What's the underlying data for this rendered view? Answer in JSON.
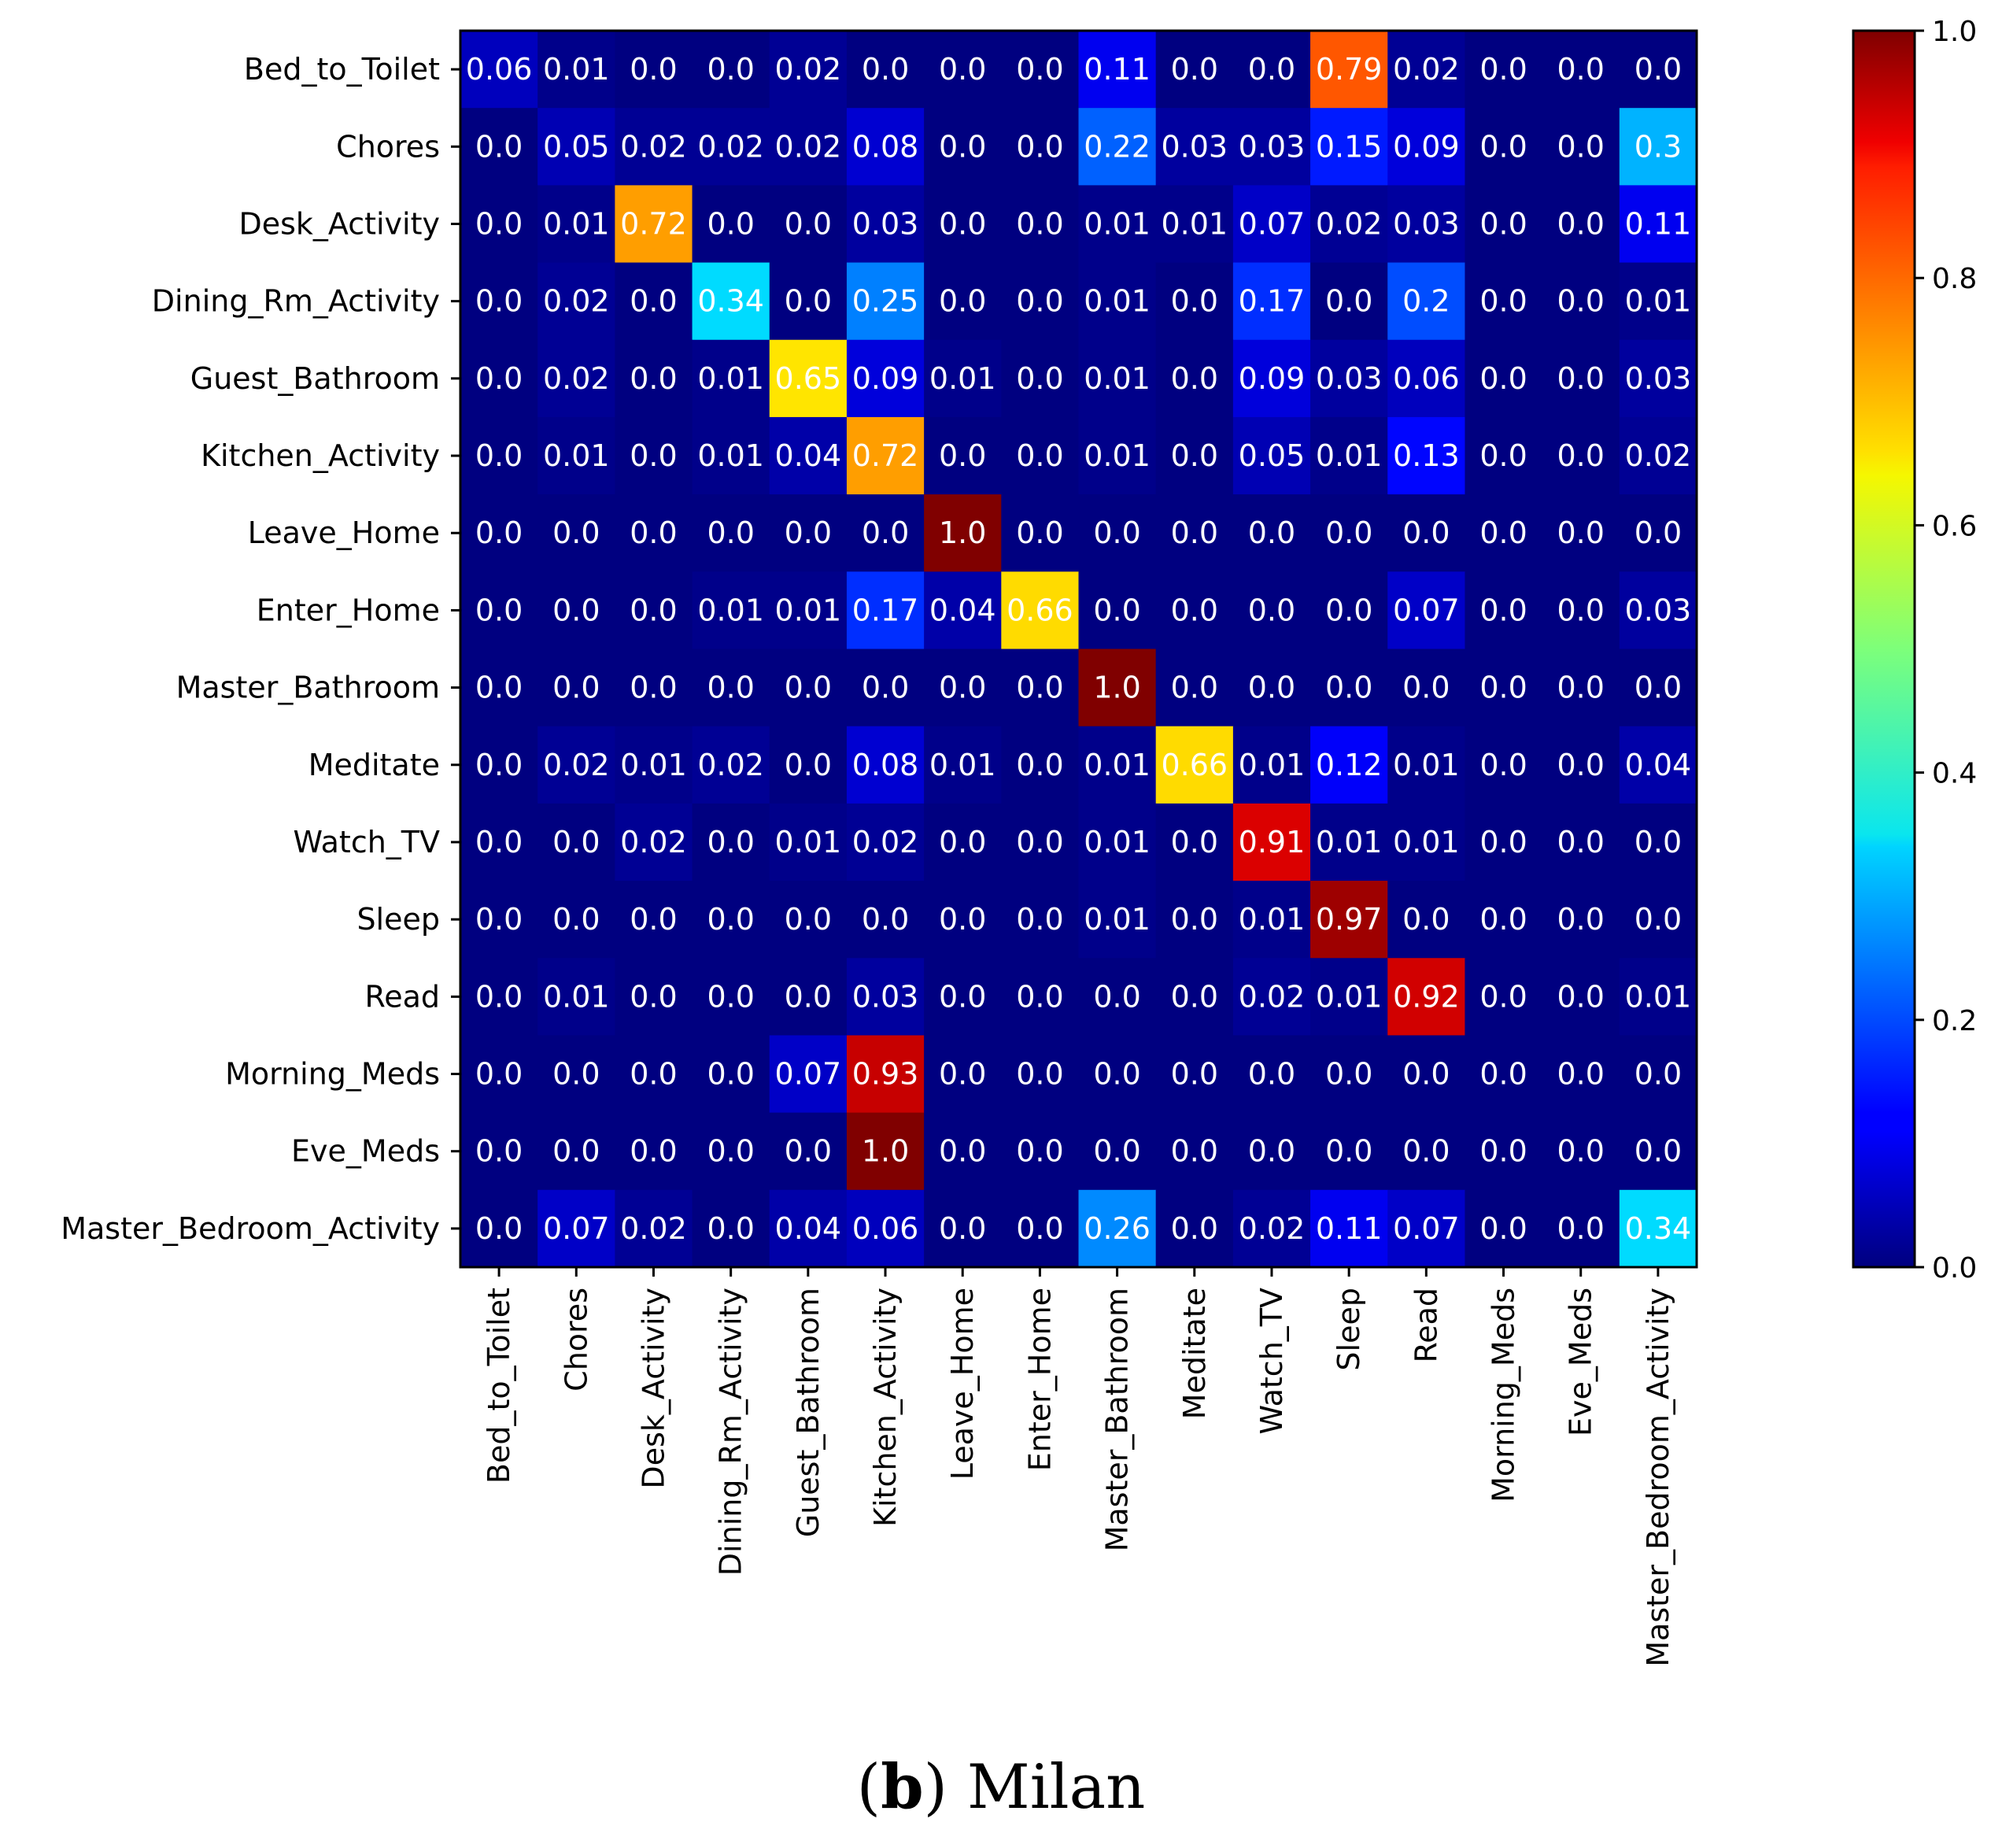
{
  "caption": {
    "tag": "b",
    "title": "Milan"
  },
  "chart_data": {
    "type": "heatmap",
    "colormap": "jet",
    "row_labels": [
      "Bed_to_Toilet",
      "Chores",
      "Desk_Activity",
      "Dining_Rm_Activity",
      "Guest_Bathroom",
      "Kitchen_Activity",
      "Leave_Home",
      "Enter_Home",
      "Master_Bathroom",
      "Meditate",
      "Watch_TV",
      "Sleep",
      "Read",
      "Morning_Meds",
      "Eve_Meds",
      "Master_Bedroom_Activity"
    ],
    "col_labels": [
      "Bed_to_Toilet",
      "Chores",
      "Desk_Activity",
      "Dining_Rm_Activity",
      "Guest_Bathroom",
      "Kitchen_Activity",
      "Leave_Home",
      "Enter_Home",
      "Master_Bathroom",
      "Meditate",
      "Watch_TV",
      "Sleep",
      "Read",
      "Morning_Meds",
      "Eve_Meds",
      "Master_Bedroom_Activity"
    ],
    "values": [
      [
        0.06,
        0.01,
        0.0,
        0.0,
        0.02,
        0.0,
        0.0,
        0.0,
        0.11,
        0.0,
        0.0,
        0.79,
        0.02,
        0.0,
        0.0,
        0.0
      ],
      [
        0.0,
        0.05,
        0.02,
        0.02,
        0.02,
        0.08,
        0.0,
        0.0,
        0.22,
        0.03,
        0.03,
        0.15,
        0.09,
        0.0,
        0.0,
        0.3
      ],
      [
        0.0,
        0.01,
        0.72,
        0.0,
        0.0,
        0.03,
        0.0,
        0.0,
        0.01,
        0.01,
        0.07,
        0.02,
        0.03,
        0.0,
        0.0,
        0.11
      ],
      [
        0.0,
        0.02,
        0.0,
        0.34,
        0.0,
        0.25,
        0.0,
        0.0,
        0.01,
        0.0,
        0.17,
        0.0,
        0.2,
        0.0,
        0.0,
        0.01
      ],
      [
        0.0,
        0.02,
        0.0,
        0.01,
        0.65,
        0.09,
        0.01,
        0.0,
        0.01,
        0.0,
        0.09,
        0.03,
        0.06,
        0.0,
        0.0,
        0.03
      ],
      [
        0.0,
        0.01,
        0.0,
        0.01,
        0.04,
        0.72,
        0.0,
        0.0,
        0.01,
        0.0,
        0.05,
        0.01,
        0.13,
        0.0,
        0.0,
        0.02
      ],
      [
        0.0,
        0.0,
        0.0,
        0.0,
        0.0,
        0.0,
        1.0,
        0.0,
        0.0,
        0.0,
        0.0,
        0.0,
        0.0,
        0.0,
        0.0,
        0.0
      ],
      [
        0.0,
        0.0,
        0.0,
        0.01,
        0.01,
        0.17,
        0.04,
        0.66,
        0.0,
        0.0,
        0.0,
        0.0,
        0.07,
        0.0,
        0.0,
        0.03
      ],
      [
        0.0,
        0.0,
        0.0,
        0.0,
        0.0,
        0.0,
        0.0,
        0.0,
        1.0,
        0.0,
        0.0,
        0.0,
        0.0,
        0.0,
        0.0,
        0.0
      ],
      [
        0.0,
        0.02,
        0.01,
        0.02,
        0.0,
        0.08,
        0.01,
        0.0,
        0.01,
        0.66,
        0.01,
        0.12,
        0.01,
        0.0,
        0.0,
        0.04
      ],
      [
        0.0,
        0.0,
        0.02,
        0.0,
        0.01,
        0.02,
        0.0,
        0.0,
        0.01,
        0.0,
        0.91,
        0.01,
        0.01,
        0.0,
        0.0,
        0.0
      ],
      [
        0.0,
        0.0,
        0.0,
        0.0,
        0.0,
        0.0,
        0.0,
        0.0,
        0.01,
        0.0,
        0.01,
        0.97,
        0.0,
        0.0,
        0.0,
        0.0
      ],
      [
        0.0,
        0.01,
        0.0,
        0.0,
        0.0,
        0.03,
        0.0,
        0.0,
        0.0,
        0.0,
        0.02,
        0.01,
        0.92,
        0.0,
        0.0,
        0.01
      ],
      [
        0.0,
        0.0,
        0.0,
        0.0,
        0.07,
        0.93,
        0.0,
        0.0,
        0.0,
        0.0,
        0.0,
        0.0,
        0.0,
        0.0,
        0.0,
        0.0
      ],
      [
        0.0,
        0.0,
        0.0,
        0.0,
        0.0,
        1.0,
        0.0,
        0.0,
        0.0,
        0.0,
        0.0,
        0.0,
        0.0,
        0.0,
        0.0,
        0.0
      ],
      [
        0.0,
        0.07,
        0.02,
        0.0,
        0.04,
        0.06,
        0.0,
        0.0,
        0.26,
        0.0,
        0.02,
        0.11,
        0.07,
        0.0,
        0.0,
        0.34
      ]
    ],
    "cell_labels": [
      [
        "0.06",
        "0.01",
        "0.0",
        "0.0",
        "0.02",
        "0.0",
        "0.0",
        "0.0",
        "0.11",
        "0.0",
        "0.0",
        "0.79",
        "0.02",
        "0.0",
        "0.0",
        "0.0"
      ],
      [
        "0.0",
        "0.05",
        "0.02",
        "0.02",
        "0.02",
        "0.08",
        "0.0",
        "0.0",
        "0.22",
        "0.03",
        "0.03",
        "0.15",
        "0.09",
        "0.0",
        "0.0",
        "0.3"
      ],
      [
        "0.0",
        "0.01",
        "0.72",
        "0.0",
        "0.0",
        "0.03",
        "0.0",
        "0.0",
        "0.01",
        "0.01",
        "0.07",
        "0.02",
        "0.03",
        "0.0",
        "0.0",
        "0.11"
      ],
      [
        "0.0",
        "0.02",
        "0.0",
        "0.34",
        "0.0",
        "0.25",
        "0.0",
        "0.0",
        "0.01",
        "0.0",
        "0.17",
        "0.0",
        "0.2",
        "0.0",
        "0.0",
        "0.01"
      ],
      [
        "0.0",
        "0.02",
        "0.0",
        "0.01",
        "0.65",
        "0.09",
        "0.01",
        "0.0",
        "0.01",
        "0.0",
        "0.09",
        "0.03",
        "0.06",
        "0.0",
        "0.0",
        "0.03"
      ],
      [
        "0.0",
        "0.01",
        "0.0",
        "0.01",
        "0.04",
        "0.72",
        "0.0",
        "0.0",
        "0.01",
        "0.0",
        "0.05",
        "0.01",
        "0.13",
        "0.0",
        "0.0",
        "0.02"
      ],
      [
        "0.0",
        "0.0",
        "0.0",
        "0.0",
        "0.0",
        "0.0",
        "1.0",
        "0.0",
        "0.0",
        "0.0",
        "0.0",
        "0.0",
        "0.0",
        "0.0",
        "0.0",
        "0.0"
      ],
      [
        "0.0",
        "0.0",
        "0.0",
        "0.01",
        "0.01",
        "0.17",
        "0.04",
        "0.66",
        "0.0",
        "0.0",
        "0.0",
        "0.0",
        "0.07",
        "0.0",
        "0.0",
        "0.03"
      ],
      [
        "0.0",
        "0.0",
        "0.0",
        "0.0",
        "0.0",
        "0.0",
        "0.0",
        "0.0",
        "1.0",
        "0.0",
        "0.0",
        "0.0",
        "0.0",
        "0.0",
        "0.0",
        "0.0"
      ],
      [
        "0.0",
        "0.02",
        "0.01",
        "0.02",
        "0.0",
        "0.08",
        "0.01",
        "0.0",
        "0.01",
        "0.66",
        "0.01",
        "0.12",
        "0.01",
        "0.0",
        "0.0",
        "0.04"
      ],
      [
        "0.0",
        "0.0",
        "0.02",
        "0.0",
        "0.01",
        "0.02",
        "0.0",
        "0.0",
        "0.01",
        "0.0",
        "0.91",
        "0.01",
        "0.01",
        "0.0",
        "0.0",
        "0.0"
      ],
      [
        "0.0",
        "0.0",
        "0.0",
        "0.0",
        "0.0",
        "0.0",
        "0.0",
        "0.0",
        "0.01",
        "0.0",
        "0.01",
        "0.97",
        "0.0",
        "0.0",
        "0.0",
        "0.0"
      ],
      [
        "0.0",
        "0.01",
        "0.0",
        "0.0",
        "0.0",
        "0.03",
        "0.0",
        "0.0",
        "0.0",
        "0.0",
        "0.02",
        "0.01",
        "0.92",
        "0.0",
        "0.0",
        "0.01"
      ],
      [
        "0.0",
        "0.0",
        "0.0",
        "0.0",
        "0.07",
        "0.93",
        "0.0",
        "0.0",
        "0.0",
        "0.0",
        "0.0",
        "0.0",
        "0.0",
        "0.0",
        "0.0",
        "0.0"
      ],
      [
        "0.0",
        "0.0",
        "0.0",
        "0.0",
        "0.0",
        "1.0",
        "0.0",
        "0.0",
        "0.0",
        "0.0",
        "0.0",
        "0.0",
        "0.0",
        "0.0",
        "0.0",
        "0.0"
      ],
      [
        "0.0",
        "0.07",
        "0.02",
        "0.0",
        "0.04",
        "0.06",
        "0.0",
        "0.0",
        "0.26",
        "0.0",
        "0.02",
        "0.11",
        "0.07",
        "0.0",
        "0.0",
        "0.34"
      ]
    ],
    "colorbar": {
      "range": [
        0.0,
        1.0
      ],
      "ticks": [
        0.0,
        0.2,
        0.4,
        0.6,
        0.8,
        1.0
      ],
      "tick_labels": [
        "0.0",
        "0.2",
        "0.4",
        "0.6",
        "0.8",
        "1.0"
      ]
    },
    "title": "",
    "xlabel": "",
    "ylabel": ""
  }
}
